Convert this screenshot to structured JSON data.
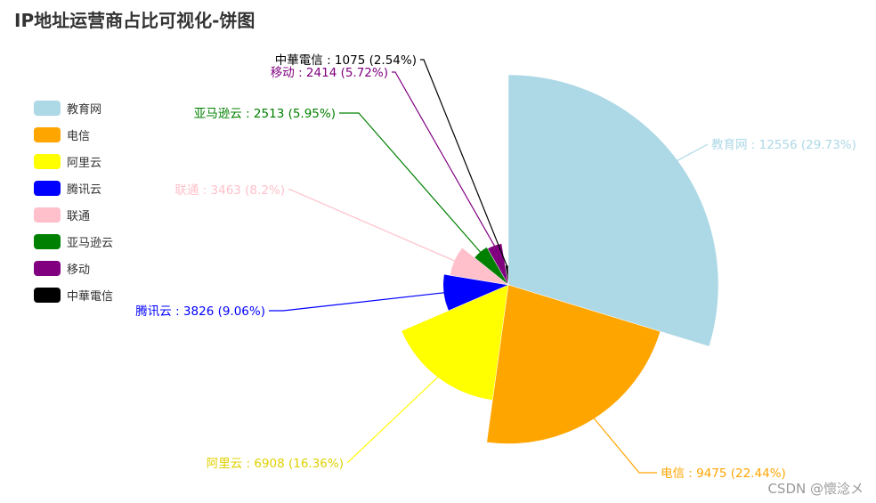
{
  "title": "IP地址运营商占比可视化-饼图",
  "watermark": "CSDN @懷淰メ",
  "legend": {
    "items": [
      {
        "label": "教育网",
        "color": "#add8e6"
      },
      {
        "label": "电信",
        "color": "#ffa500"
      },
      {
        "label": "阿里云",
        "color": "#ffff00"
      },
      {
        "label": "腾讯云",
        "color": "#0000ff"
      },
      {
        "label": "联通",
        "color": "#ffc0cb"
      },
      {
        "label": "亚马逊云",
        "color": "#008000"
      },
      {
        "label": "移动",
        "color": "#800080"
      },
      {
        "label": "中華電信",
        "color": "#000000"
      }
    ]
  },
  "chart_data": {
    "type": "pie",
    "variant": "rose-radius",
    "title": "IP地址运营商占比可视化-饼图",
    "legend_position": "left",
    "slices": [
      {
        "name": "教育网",
        "value": 12556,
        "percent": 29.73,
        "label": "教育网 : 12556 (29.73%)",
        "color": "#add8e6"
      },
      {
        "name": "电信",
        "value": 9475,
        "percent": 22.44,
        "label": "电信 : 9475 (22.44%)",
        "color": "#ffa500"
      },
      {
        "name": "阿里云",
        "value": 6908,
        "percent": 16.36,
        "label": "阿里云 : 6908 (16.36%)",
        "color": "#ffff00"
      },
      {
        "name": "腾讯云",
        "value": 3826,
        "percent": 9.06,
        "label": "腾讯云 : 3826 (9.06%)",
        "color": "#0000ff"
      },
      {
        "name": "联通",
        "value": 3463,
        "percent": 8.2,
        "label": "联通 : 3463 (8.2%)",
        "color": "#ffc0cb"
      },
      {
        "name": "亚马逊云",
        "value": 2513,
        "percent": 5.95,
        "label": "亚马逊云 : 2513 (5.95%)",
        "color": "#008000"
      },
      {
        "name": "移动",
        "value": 2414,
        "percent": 5.72,
        "label": "移动 : 2414 (5.72%)",
        "color": "#800080"
      },
      {
        "name": "中華電信",
        "value": 1075,
        "percent": 2.54,
        "label": "中華電信 : 1075 (2.54%)",
        "color": "#000000"
      }
    ]
  }
}
